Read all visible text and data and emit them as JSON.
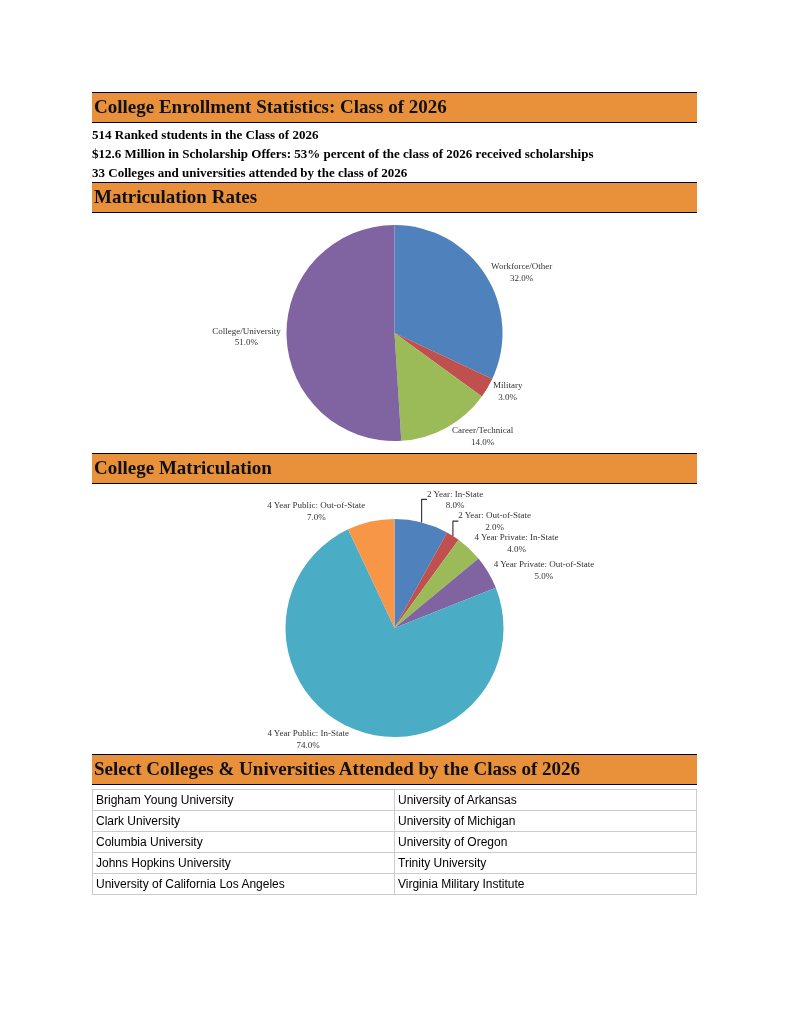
{
  "chart_data": [
    {
      "type": "other",
      "title": "College Enrollment Statistics: Class of 2026",
      "subtitle": "514 Ranked students in the Class of 2026\n$12.6 Million in Scholarship Offers: 53% percent of the class of 2026 received scholarships\n33 Colleges and universities attended by the class of 2026"
    },
    {
      "type": "pie",
      "title": "Matriculation Rates",
      "categories": [
        "Workforce/Other",
        "Military",
        "Career/Technical",
        "College/University"
      ],
      "values": [
        32,
        3,
        14,
        51
      ],
      "value_labels": [
        "32.0%",
        "3.0%",
        "14.0%",
        "51.0%"
      ],
      "colors": [
        "#4f81bd",
        "#c0504d",
        "#9bbb59",
        "#8064a2"
      ],
      "legend": false
    },
    {
      "type": "pie",
      "title": "College Matriculation",
      "categories": [
        "2 Year: In-State",
        "2 Year: Out-of-State",
        "4 Year Private: In-State",
        "4 Year Private: Out-of-State",
        "4 Year Public: In-State",
        "4 Year Public: Out-of-State"
      ],
      "values": [
        8,
        2,
        4,
        5,
        74,
        7
      ],
      "value_labels": [
        "8.0%",
        "2.0%",
        "4.0%",
        "5.0%",
        "74.0%",
        "7.0%"
      ],
      "colors": [
        "#4f81bd",
        "#c0504d",
        "#9bbb59",
        "#8064a2",
        "#4bacc6",
        "#f79646"
      ],
      "legend": false
    },
    {
      "type": "other",
      "title": "Select Colleges & Universities Attended by the Class of 2026",
      "annotations": [
        "Brigham Young University",
        "Clark University",
        "Columbia University",
        "Johns Hopkins University",
        "University of California Los Angeles",
        "University of Arkansas",
        "University of Michigan",
        "University of Oregon",
        "Trinity University",
        "Virginia Military Institute"
      ]
    }
  ]
}
